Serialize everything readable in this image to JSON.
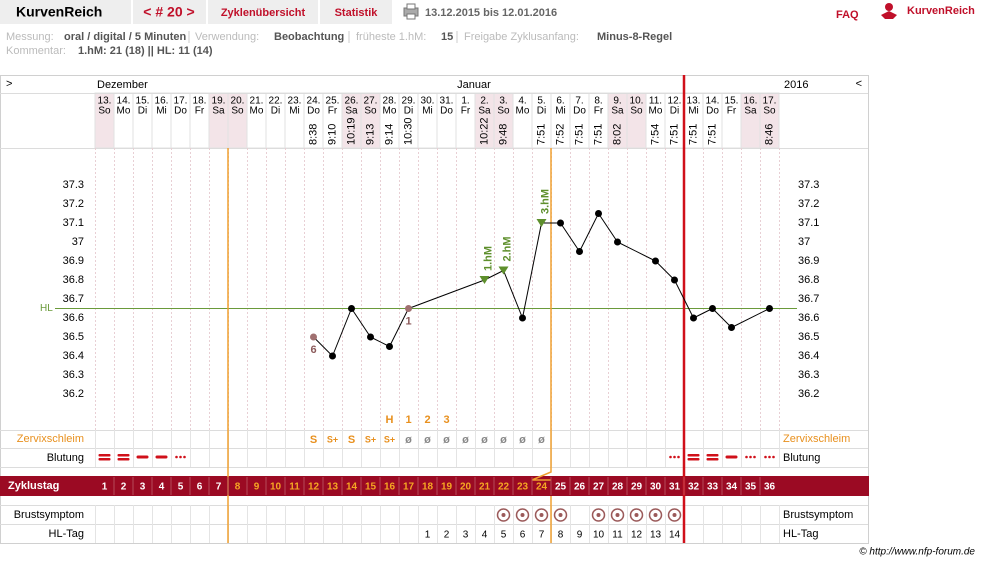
{
  "header": {
    "brand": "KurvenReich",
    "cycle_nav": "< # 20 >",
    "tabs": [
      "Zyklenübersicht",
      "Statistik"
    ],
    "period": "13.12.2015 bis 12.01.2016",
    "faq": "FAQ",
    "logo": "KurvenReich"
  },
  "info": {
    "measurement_label": "Messung:",
    "measurement": "oral / digital / 5 Minuten",
    "usage_label": "Verwendung:",
    "usage": "Beobachtung",
    "earliest_label": "früheste 1.hM:",
    "earliest": "15",
    "release_label": "Freigabe Zyklusanfang:",
    "release": "Minus-8-Regel",
    "comment_label": "Kommentar:",
    "comment": "1.hM: 21 (18) || HL: 11 (14)"
  },
  "chart_data": {
    "type": "line",
    "nav_prev": ">",
    "nav_next": "<",
    "months": [
      "Dezember",
      "Januar"
    ],
    "year": "2016",
    "days": [
      "13.",
      "14.",
      "15.",
      "16.",
      "17.",
      "18.",
      "19.",
      "20.",
      "21.",
      "22.",
      "23.",
      "24.",
      "25.",
      "26.",
      "27.",
      "28.",
      "29.",
      "30.",
      "31.",
      "1.",
      "2.",
      "3.",
      "4.",
      "5.",
      "6.",
      "7.",
      "8.",
      "9.",
      "10.",
      "11.",
      "12.",
      "13.",
      "14.",
      "15.",
      "16.",
      "17."
    ],
    "weekdays": [
      "So",
      "Mo",
      "Di",
      "Mi",
      "Do",
      "Fr",
      "Sa",
      "So",
      "Mo",
      "Di",
      "Mi",
      "Do",
      "Fr",
      "Sa",
      "So",
      "Mo",
      "Di",
      "Mi",
      "Do",
      "Fr",
      "Sa",
      "So",
      "Mo",
      "Di",
      "Mi",
      "Do",
      "Fr",
      "Sa",
      "So",
      "Mo",
      "Di",
      "Mi",
      "Do",
      "Fr",
      "Sa",
      "So"
    ],
    "times": [
      null,
      null,
      null,
      null,
      null,
      null,
      null,
      null,
      null,
      null,
      null,
      "8:38",
      "9:10",
      "10:19",
      "9:13",
      "9:14",
      "10:30",
      null,
      null,
      null,
      "10:22",
      "9:48",
      null,
      "7:51",
      "7:52",
      "7:51",
      "7:51",
      "8:02",
      null,
      "7:54",
      "7:51",
      "7:51",
      "7:51",
      null,
      null,
      "8:46"
    ],
    "ylim": [
      36.0,
      37.5
    ],
    "yticks": [
      37.3,
      37.2,
      37.1,
      37,
      36.9,
      36.8,
      36.7,
      36.6,
      36.5,
      36.4,
      36.3,
      36.2
    ],
    "color": "#000000",
    "values": [
      null,
      null,
      null,
      null,
      null,
      null,
      null,
      null,
      null,
      null,
      null,
      36.5,
      36.4,
      36.65,
      36.5,
      36.45,
      36.65,
      null,
      null,
      null,
      36.8,
      36.85,
      36.6,
      37.1,
      37.1,
      36.95,
      37.15,
      37,
      null,
      36.9,
      36.8,
      36.6,
      36.65,
      36.55,
      null,
      36.65
    ],
    "point_labels": [
      null,
      null,
      null,
      null,
      null,
      null,
      null,
      null,
      null,
      null,
      null,
      "6",
      null,
      null,
      null,
      null,
      "1",
      null,
      null,
      null,
      null,
      null,
      null,
      null,
      null,
      null,
      null,
      null,
      null,
      null,
      null,
      null,
      null,
      null,
      null,
      null
    ],
    "hm_labels": [
      null,
      null,
      null,
      null,
      null,
      null,
      null,
      null,
      null,
      null,
      null,
      null,
      null,
      null,
      null,
      null,
      null,
      null,
      null,
      null,
      "1.hM",
      "2.hM",
      null,
      "3.hM",
      null,
      null,
      null,
      null,
      null,
      null,
      null,
      null,
      null,
      null,
      null,
      null
    ],
    "hl_line": {
      "label": "HL",
      "value": 36.65,
      "color": "#6a9a3a"
    },
    "notes": [
      null,
      null,
      null,
      null,
      null,
      null,
      null,
      null,
      null,
      null,
      null,
      null,
      null,
      null,
      null,
      "H",
      "1",
      "2",
      "3",
      null,
      null,
      null,
      null,
      null,
      null,
      null,
      null,
      null,
      null,
      null,
      null,
      null,
      null,
      null,
      null,
      null
    ],
    "cervix_label": "Zervixschleim",
    "cervix": [
      null,
      null,
      null,
      null,
      null,
      null,
      null,
      null,
      null,
      null,
      null,
      "S",
      "S+",
      "S",
      "S+",
      "S+",
      "ø",
      "ø",
      "ø",
      "ø",
      "ø",
      "ø",
      "ø",
      "ø",
      null,
      null,
      null,
      null,
      null,
      null,
      null,
      null,
      null,
      null,
      null,
      null
    ],
    "bleeding_label": "Blutung",
    "cycle_day_label": "Zyklustag",
    "cycle_days": [
      1,
      2,
      3,
      4,
      5,
      6,
      7,
      8,
      9,
      10,
      11,
      12,
      13,
      14,
      15,
      16,
      17,
      18,
      19,
      20,
      21,
      22,
      23,
      24,
      25,
      26,
      27,
      28,
      29,
      30,
      31,
      32,
      33,
      34,
      35,
      36
    ],
    "breast_label": "Brustsymptom",
    "hl_day_label": "HL-Tag",
    "hl_days": [
      null,
      null,
      null,
      null,
      null,
      null,
      null,
      null,
      null,
      null,
      null,
      null,
      null,
      null,
      null,
      null,
      null,
      1,
      2,
      3,
      4,
      5,
      6,
      7,
      8,
      9,
      10,
      11,
      12,
      13,
      14,
      null,
      null,
      null,
      null,
      null
    ]
  },
  "footer": "© http://www.nfp-forum.de"
}
